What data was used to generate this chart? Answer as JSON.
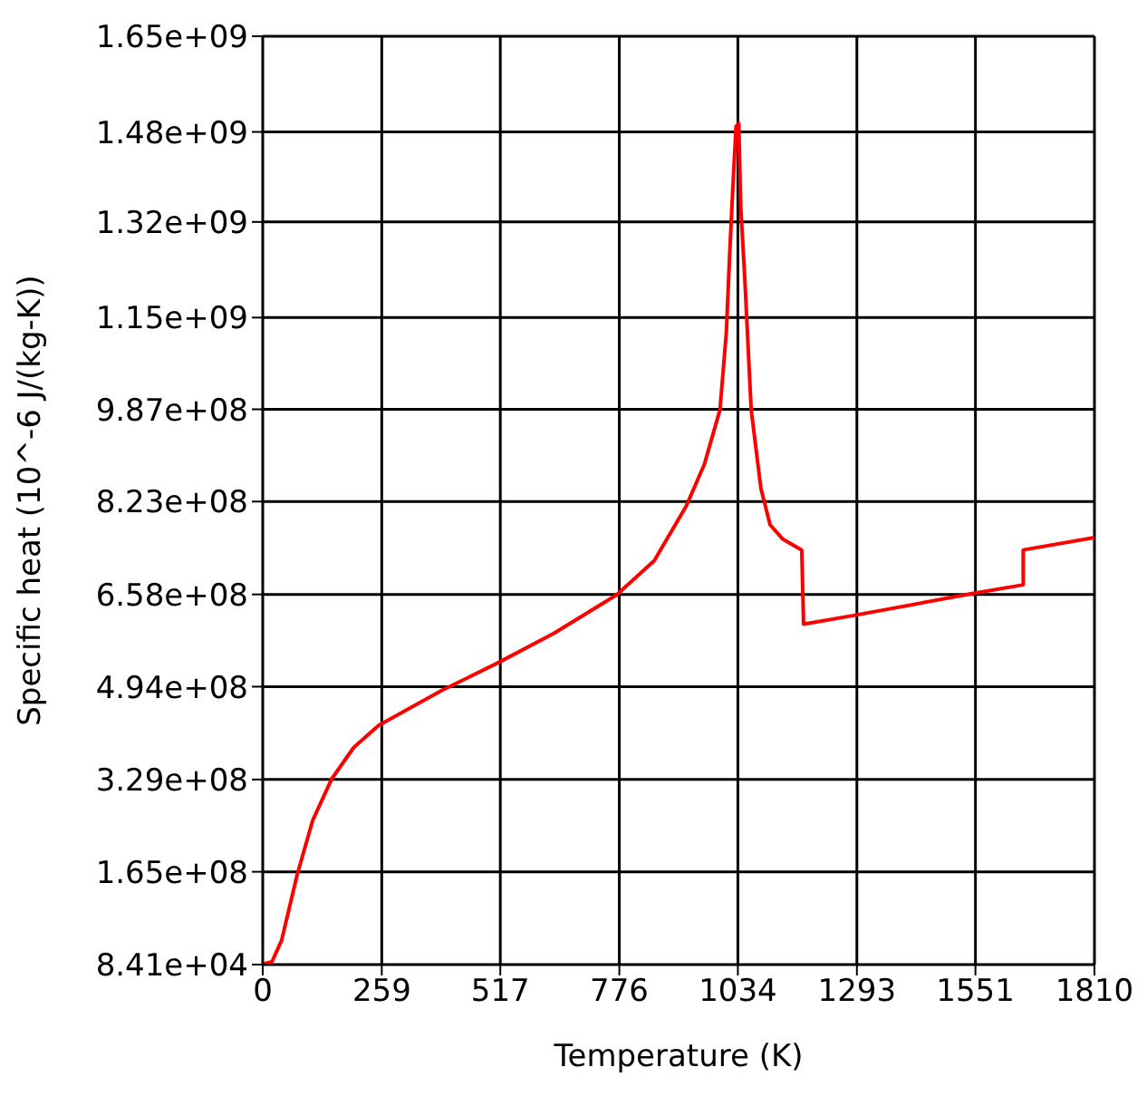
{
  "chart_data": {
    "type": "line",
    "xlabel": "Temperature (K)",
    "ylabel": "Specific heat (10^-6 J/(kg-K))",
    "x": [
      0,
      20,
      41,
      75,
      109,
      150,
      198,
      252,
      389,
      511,
      634,
      770,
      852,
      921,
      961,
      995,
      1009,
      1016,
      1023,
      1030,
      1036,
      1040,
      1049,
      1063,
      1084,
      1104,
      1132,
      1173,
      1177,
      1289,
      1541,
      1655,
      1655,
      1810
    ],
    "series": [
      {
        "color": "#ff0000",
        "values": [
          1000000,
          5000000,
          43000000,
          160000000,
          257000000,
          330000000,
          386000000,
          425000000,
          487000000,
          536000000,
          589000000,
          657000000,
          718000000,
          814000000,
          889000000,
          986000000,
          1125000000,
          1260000000,
          1380000000,
          1490000000,
          1495000000,
          1350000000,
          1220000000,
          986000000,
          847000000,
          782000000,
          756000000,
          737000000,
          605000000,
          621000000,
          659000000,
          675000000,
          737000000,
          759000000
        ]
      }
    ],
    "xlim": [
      0,
      1810
    ],
    "xticks": [
      0,
      259,
      517,
      776,
      1034,
      1293,
      1551,
      1810
    ],
    "ylim": [
      84100,
      1650000000
    ],
    "yticks": [
      {
        "value": 84100,
        "label": "8.41e+04"
      },
      {
        "value": 165000000,
        "label": "1.65e+08"
      },
      {
        "value": 329000000,
        "label": "3.29e+08"
      },
      {
        "value": 494000000,
        "label": "4.94e+08"
      },
      {
        "value": 658000000,
        "label": "6.58e+08"
      },
      {
        "value": 823000000,
        "label": "8.23e+08"
      },
      {
        "value": 987000000,
        "label": "9.87e+08"
      },
      {
        "value": 1150000000,
        "label": "1.15e+09"
      },
      {
        "value": 1320000000,
        "label": "1.32e+09"
      },
      {
        "value": 1480000000,
        "label": "1.48e+09"
      },
      {
        "value": 1650000000,
        "label": "1.65e+09"
      }
    ],
    "grid": true,
    "line_style": "solid"
  }
}
